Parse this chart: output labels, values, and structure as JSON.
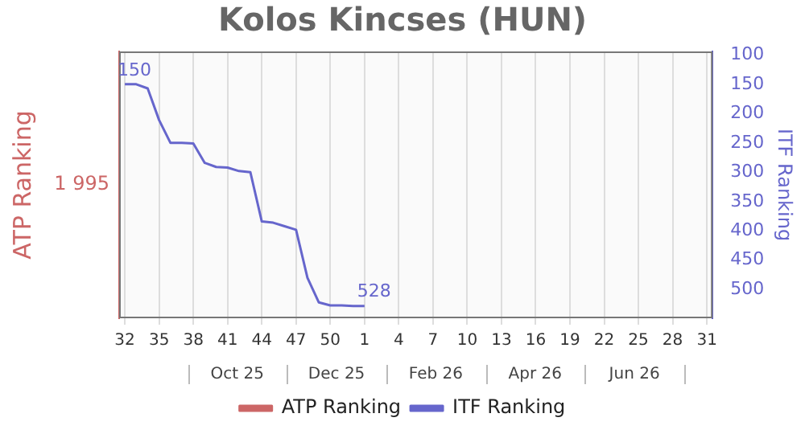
{
  "chart_data": {
    "type": "line",
    "title": "Kolos Kincses (HUN)",
    "ylabel": "ATP Ranking",
    "y2label": "ITF Ranking",
    "categories": [
      "32",
      null,
      null,
      "35",
      null,
      null,
      "38",
      null,
      null,
      "41",
      null,
      null,
      "44",
      null,
      null,
      "47",
      null,
      null,
      "50",
      null,
      null,
      "1",
      null,
      null,
      "4",
      null,
      null,
      "7",
      null,
      null,
      "10",
      null,
      null,
      "13",
      null,
      null,
      "16",
      null,
      null,
      "19",
      null,
      null,
      "22",
      null,
      null,
      "25",
      null,
      null,
      "28",
      null,
      null,
      "31"
    ],
    "series": [
      {
        "name": "ATP Ranking",
        "color": "#cc6666",
        "values": [
          null,
          null,
          null,
          null,
          null,
          null,
          null,
          null,
          null,
          null,
          null,
          null,
          null,
          null,
          null,
          null,
          null,
          null,
          null,
          null,
          null,
          null,
          null,
          null,
          null,
          null,
          null,
          null,
          null,
          null,
          null,
          null,
          null,
          null,
          null,
          null,
          null,
          null,
          null,
          null,
          null,
          null,
          null,
          null,
          null,
          null,
          null,
          null,
          null,
          null,
          null,
          null
        ]
      },
      {
        "name": "ITF Ranking",
        "color": "#6666cc",
        "axis": "y2",
        "values": [
          150,
          150,
          157,
          211,
          250,
          250,
          251,
          284,
          291,
          292,
          298,
          300,
          384,
          386,
          392,
          398,
          480,
          522,
          527,
          527,
          528,
          528,
          null,
          null,
          null,
          null,
          null,
          null,
          null,
          null,
          null,
          null,
          null,
          null,
          null,
          null,
          null,
          null,
          null,
          null,
          null,
          null,
          null,
          null,
          null,
          null,
          null,
          null,
          null,
          null,
          null,
          null
        ],
        "value_labels": [
          "150",
          null,
          null,
          null,
          null,
          null,
          null,
          null,
          null,
          null,
          null,
          null,
          null,
          null,
          null,
          null,
          null,
          null,
          null,
          null,
          null,
          "528",
          null,
          null,
          null,
          null,
          null,
          null,
          null,
          null,
          null,
          null,
          null,
          null,
          null,
          null,
          null,
          null,
          null,
          null,
          null,
          null,
          null,
          null,
          null,
          null,
          null,
          null,
          null,
          null,
          null,
          null
        ]
      }
    ],
    "y2lim": [
      549,
      94
    ],
    "y2ticks": [
      100,
      150,
      200,
      250,
      300,
      350,
      400,
      450,
      500
    ],
    "annotations": [
      "1 995",
      "Oct 25",
      "Dec 25",
      "Feb 26",
      "Apr 26",
      "Jun 26"
    ],
    "grid": true,
    "line_style": "solid",
    "marker": "none",
    "legend": "bottom"
  }
}
